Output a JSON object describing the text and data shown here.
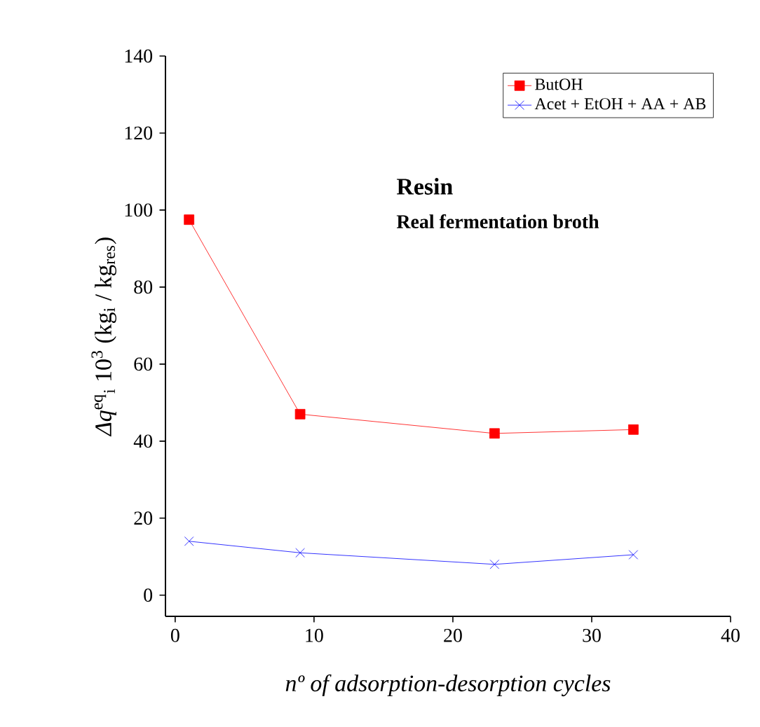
{
  "chart_data": {
    "type": "line",
    "xlabel": "nº of adsorption-desorption cycles",
    "ylabel": "*Δq*$^{eq}$$_{i}$ 10$^{3}$  (kg$_{i}$ / kg$_{res}$)",
    "x": [
      1,
      9,
      23,
      33
    ],
    "series": [
      {
        "name": "ButOH",
        "color": "#ff0000",
        "marker": "square",
        "values": [
          97.5,
          47,
          42,
          43
        ]
      },
      {
        "name": "Acet + EtOH + AA + AB",
        "color": "#0000ff",
        "marker": "cross",
        "values": [
          14,
          11,
          8,
          10.5
        ]
      }
    ],
    "xlim": [
      -0.7,
      40
    ],
    "ylim": [
      -5.5,
      140
    ],
    "xticks": [
      0,
      10,
      20,
      30,
      40
    ],
    "yticks": [
      0,
      20,
      40,
      60,
      80,
      100,
      120,
      140
    ],
    "legend": "top right",
    "annotations": [
      "Resin",
      "Real fermentation broth"
    ]
  }
}
